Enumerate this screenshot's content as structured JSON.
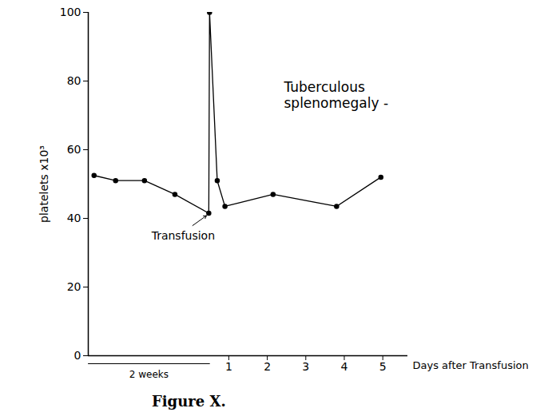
{
  "chart_data": {
    "type": "line",
    "title": "Tuberculous splenomegaly -",
    "x_label": "Days after Transfusion",
    "y_label": "platelets x10³",
    "caption": "Figure X.",
    "annotations": [
      {
        "text": "Transfusion"
      },
      {
        "text": "2 weeks"
      }
    ],
    "x": [
      -2.5,
      -1.94,
      -1.19,
      -0.4,
      0.48,
      0.5,
      0.7,
      0.9,
      2.15,
      3.8,
      4.95
    ],
    "series": [
      {
        "name": "Tuberculous splenomegaly",
        "color": "#000000",
        "marker": "circle",
        "values": [
          52.5,
          51,
          51,
          47,
          41.5,
          100,
          51,
          43.5,
          47,
          43.5,
          52
        ]
      }
    ],
    "xlim": [
      -2.65,
      5.65
    ],
    "xticks": [
      1,
      2,
      3,
      4,
      5
    ],
    "ylim": [
      0,
      100
    ],
    "yticks": [
      0,
      20,
      40,
      60,
      80,
      100
    ],
    "grid": false
  }
}
